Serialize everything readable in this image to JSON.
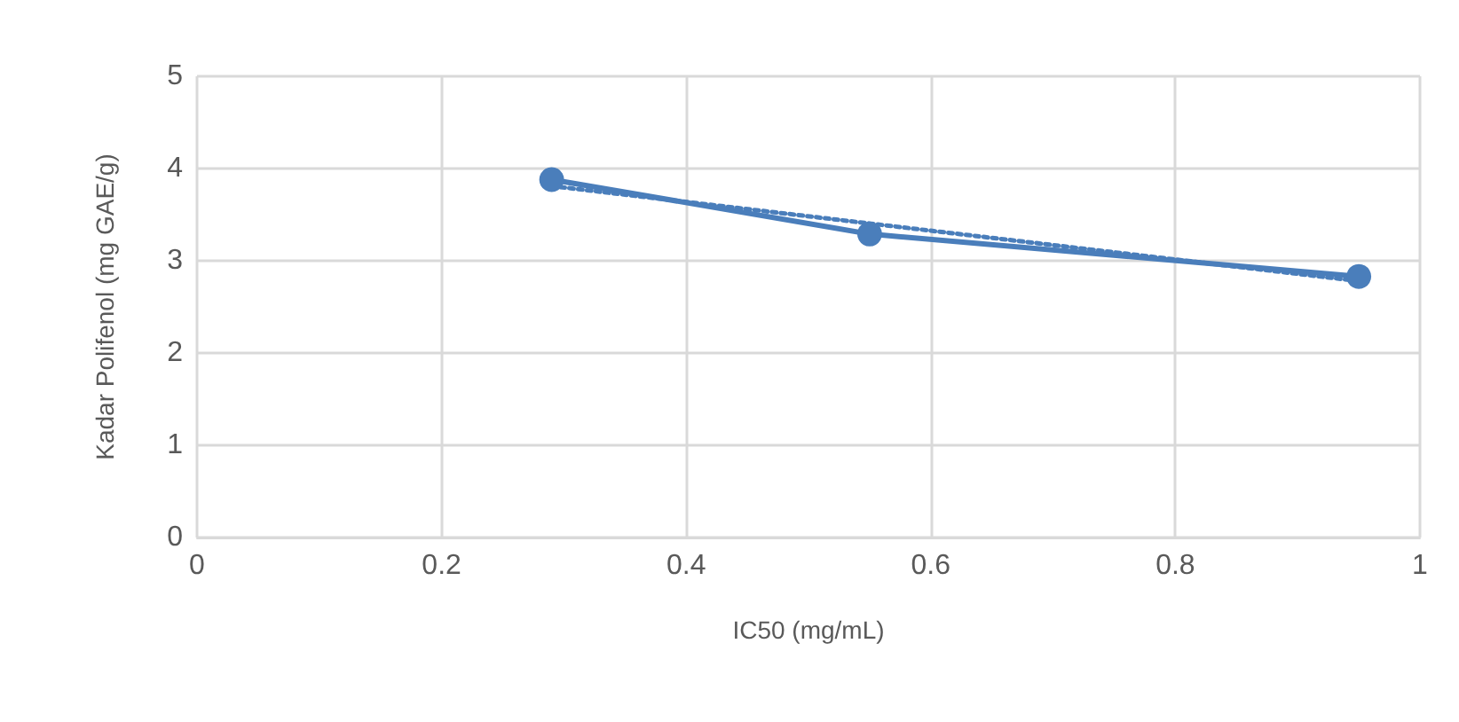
{
  "chart_data": {
    "type": "line",
    "xlabel": "IC50 (mg/mL)",
    "ylabel": "Kadar Polifenol (mg GAE/g)",
    "xlim": [
      0,
      1
    ],
    "xticks": [
      0,
      0.2,
      0.4,
      0.6,
      0.8,
      1
    ],
    "ylim": [
      0,
      5
    ],
    "yticks": [
      0,
      1,
      2,
      3,
      4,
      5
    ],
    "grid": true,
    "marker": "circle",
    "line_style": "solid",
    "series": [
      {
        "x": [
          0.29,
          0.55,
          0.95
        ],
        "values": [
          3.88,
          3.29,
          2.83
        ],
        "color": "#4a7ebb"
      },
      {
        "type": "line",
        "x": [
          0.29,
          0.95
        ],
        "values": [
          3.81,
          2.78
        ],
        "color": "#4a7ebb",
        "marker": "none",
        "line_style": "dotted"
      }
    ]
  }
}
